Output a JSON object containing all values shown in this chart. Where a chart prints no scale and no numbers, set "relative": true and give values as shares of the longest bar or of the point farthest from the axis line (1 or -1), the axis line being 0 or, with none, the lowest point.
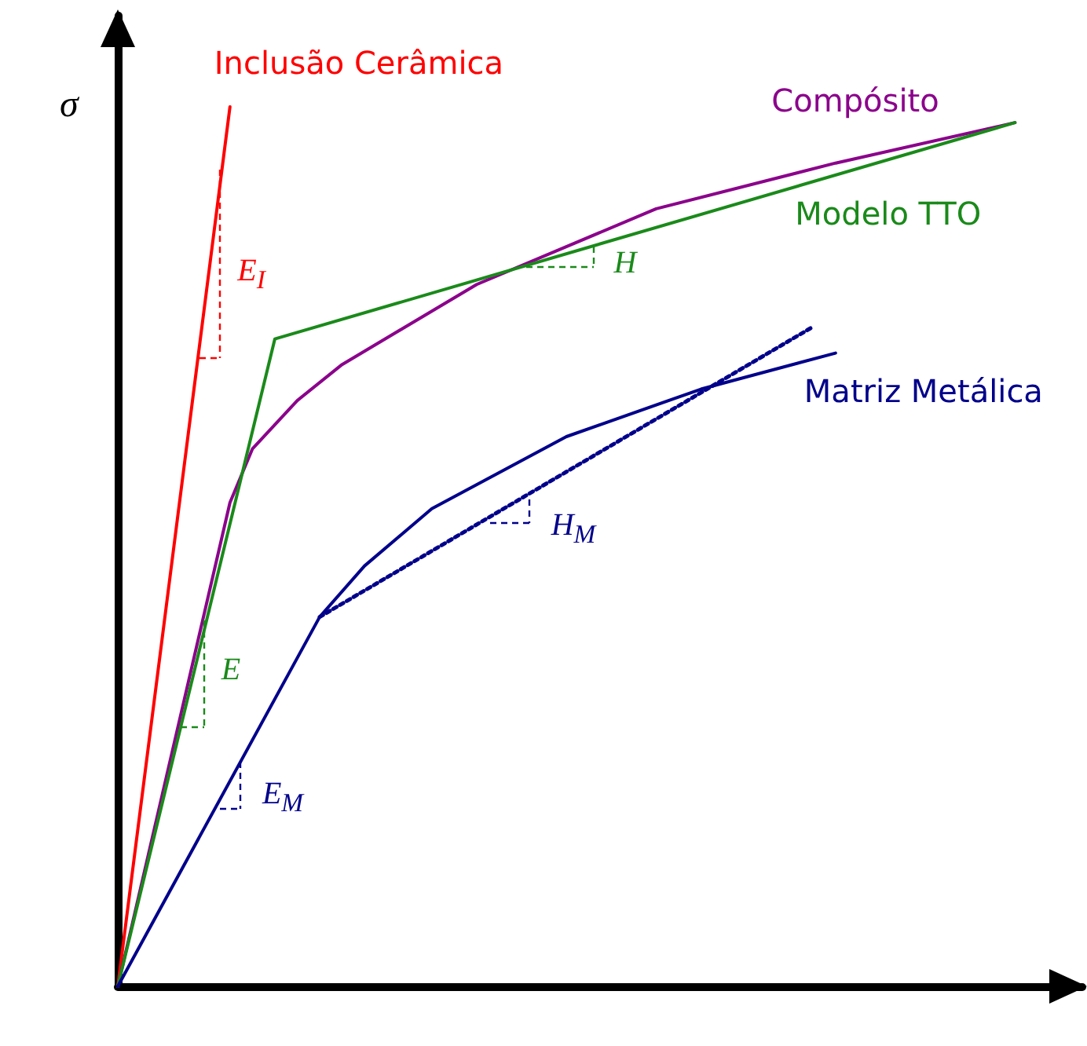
{
  "chart_data": {
    "type": "line",
    "relative": true,
    "ylabel": "σ",
    "marker": "none",
    "categories": [
      null,
      null,
      null,
      null,
      null,
      null,
      null,
      null,
      null,
      null,
      null,
      null,
      null,
      null,
      null,
      null,
      null,
      null,
      null,
      null,
      null,
      null,
      null,
      null,
      null,
      null,
      null,
      null,
      null,
      null,
      null,
      null,
      null,
      null,
      null,
      null,
      null,
      null,
      null,
      null,
      null,
      null,
      null,
      null
    ],
    "series": [
      {
        "name": "Inclusão Cerâmica",
        "color": "#ff0000",
        "values": [
          0,
          null,
          null,
          null,
          null,
          1,
          null,
          null,
          null,
          null,
          null,
          null,
          null,
          null,
          null,
          null,
          null,
          null,
          null,
          null,
          null,
          null,
          null,
          null,
          null,
          null,
          null,
          null,
          null,
          null,
          null,
          null,
          null,
          null,
          null,
          null,
          null,
          null,
          null,
          null,
          null,
          null,
          null,
          null
        ]
      },
      {
        "name": "Compósito",
        "color": "#8b008b",
        "values": [
          0,
          null,
          null,
          null,
          null,
          0.55,
          0.611,
          null,
          0.666,
          null,
          0.707,
          null,
          null,
          null,
          null,
          null,
          0.798,
          null,
          null,
          null,
          null,
          null,
          null,
          null,
          0.884,
          null,
          null,
          null,
          null,
          null,
          null,
          null,
          0.936,
          null,
          null,
          null,
          null,
          null,
          null,
          null,
          0.982,
          null,
          null,
          null
        ]
      },
      {
        "name": "Modelo TTO",
        "color": "#1a8a1a",
        "values": [
          0,
          null,
          null,
          null,
          null,
          null,
          null,
          0.736,
          null,
          null,
          null,
          null,
          null,
          null,
          null,
          null,
          null,
          null,
          null,
          null,
          null,
          null,
          null,
          null,
          null,
          null,
          null,
          null,
          null,
          null,
          null,
          null,
          null,
          null,
          null,
          null,
          null,
          null,
          null,
          null,
          0.982,
          null,
          null,
          null
        ]
      },
      {
        "name": "Matriz Metálica",
        "color": "#00008b",
        "values": [
          0,
          null,
          null,
          null,
          null,
          null,
          null,
          null,
          null,
          0.42,
          null,
          0.478,
          null,
          null,
          0.543,
          null,
          null,
          null,
          null,
          null,
          0.625,
          null,
          null,
          null,
          null,
          null,
          0.679,
          null,
          null,
          null,
          null,
          null,
          0.72,
          null,
          null,
          null,
          null,
          null,
          null,
          null,
          null,
          null,
          null,
          null
        ]
      },
      {
        "color": "#00008b",
        "line_style": "dotted",
        "values": [
          null,
          null,
          null,
          null,
          null,
          null,
          null,
          null,
          null,
          0.42,
          null,
          null,
          null,
          null,
          null,
          null,
          null,
          null,
          null,
          null,
          null,
          null,
          null,
          null,
          null,
          null,
          null,
          null,
          null,
          null,
          null,
          0.75,
          null,
          null,
          null,
          null,
          null,
          null,
          null,
          null,
          null,
          null,
          null,
          null
        ]
      }
    ],
    "annotations": [
      "E$_{I}$",
      "H",
      "H$_{M}$",
      "E",
      "E$_{M}$"
    ]
  }
}
